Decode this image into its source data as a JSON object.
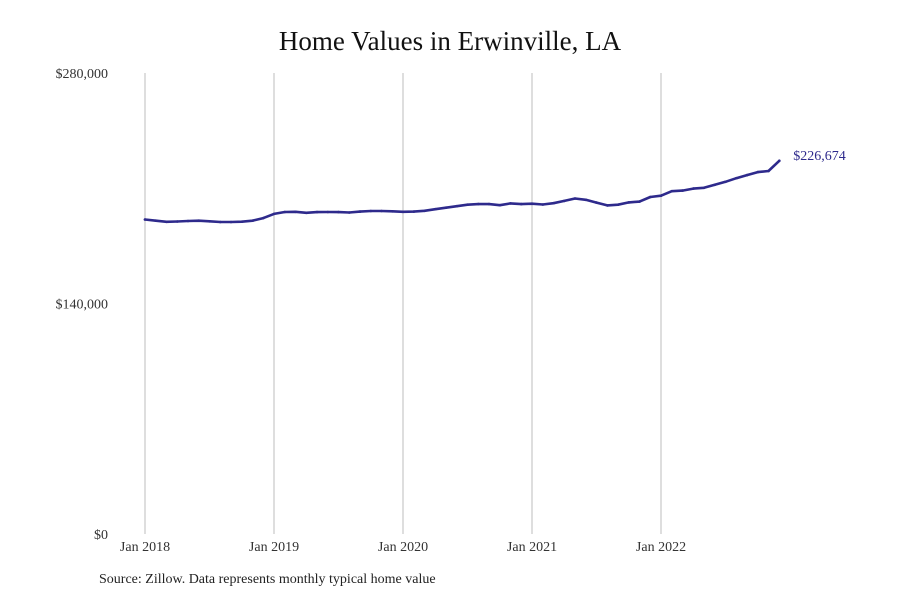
{
  "chart_data": {
    "type": "line",
    "title": "Home Values in Erwinville, LA",
    "source_note": "Source: Zillow. Data represents monthly typical home value",
    "series_color": "#2e2a8c",
    "gridline_color": "#bdbdbd",
    "grid": "vertical",
    "ylim": [
      0,
      280000
    ],
    "y_ticks": [
      {
        "value": 0,
        "label": "$0"
      },
      {
        "value": 140000,
        "label": "$140,000"
      },
      {
        "value": 280000,
        "label": "$280,000"
      }
    ],
    "x_ticks": [
      {
        "value": "2018-01",
        "label": "Jan 2018"
      },
      {
        "value": "2019-01",
        "label": "Jan 2019"
      },
      {
        "value": "2020-01",
        "label": "Jan 2020"
      },
      {
        "value": "2021-01",
        "label": "Jan 2021"
      },
      {
        "value": "2022-01",
        "label": "Jan 2022"
      }
    ],
    "end_label": "$226,674",
    "series": [
      {
        "x": [
          "2018-01",
          "2018-02",
          "2018-03",
          "2018-04",
          "2018-05",
          "2018-06",
          "2018-07",
          "2018-08",
          "2018-09",
          "2018-10",
          "2018-11",
          "2018-12",
          "2019-01",
          "2019-02",
          "2019-03",
          "2019-04",
          "2019-05",
          "2019-06",
          "2019-07",
          "2019-08",
          "2019-09",
          "2019-10",
          "2019-11",
          "2019-12",
          "2020-01",
          "2020-02",
          "2020-03",
          "2020-04",
          "2020-05",
          "2020-06",
          "2020-07",
          "2020-08",
          "2020-09",
          "2020-10",
          "2020-11",
          "2020-12",
          "2021-01",
          "2021-02",
          "2021-03",
          "2021-04",
          "2021-05",
          "2021-06",
          "2021-07",
          "2021-08",
          "2021-09",
          "2021-10",
          "2021-11",
          "2021-12",
          "2022-01",
          "2022-02",
          "2022-03",
          "2022-04",
          "2022-05",
          "2022-06",
          "2022-07",
          "2022-08",
          "2022-09",
          "2022-10",
          "2022-11",
          "2022-12"
        ],
        "values": [
          191000,
          190300,
          189600,
          189800,
          190100,
          190300,
          189900,
          189500,
          189500,
          189700,
          190300,
          191900,
          194400,
          195600,
          195700,
          195100,
          195500,
          195600,
          195500,
          195300,
          195800,
          196200,
          196200,
          196000,
          195700,
          195800,
          196300,
          197300,
          198200,
          199100,
          200000,
          200400,
          200400,
          199700,
          200800,
          200400,
          200600,
          200100,
          200900,
          202300,
          203800,
          203000,
          201300,
          199600,
          200000,
          201400,
          201900,
          204700,
          205500,
          208200,
          208600,
          209800,
          210300,
          212100,
          213900,
          216100,
          218000,
          219800,
          220500,
          226674
        ]
      }
    ]
  }
}
